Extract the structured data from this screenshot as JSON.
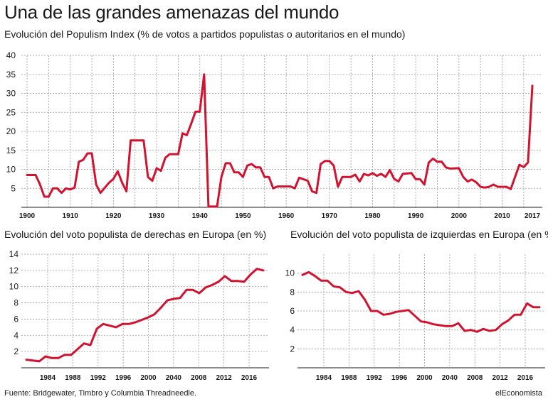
{
  "header": {
    "title": "Una de las grandes amenazas del mundo",
    "subtitle": "Evolución del Populism Index (% de votos a partidos populistas o autoritarios en el mundo)"
  },
  "footer": {
    "source": "Fuente: Bridgewater, Timbro y Columbia Threadneedle.",
    "brand": "elEconomista"
  },
  "colors": {
    "series": "#d2122e",
    "grid": "#9a9a9a",
    "text": "#1a1a1a"
  },
  "chart_data": [
    {
      "type": "line",
      "title": "",
      "ylim": [
        0,
        40
      ],
      "yticks": [
        5,
        10,
        15,
        20,
        25,
        30,
        35,
        40
      ],
      "xlim": [
        1900,
        2017
      ],
      "xticks": [
        "1900",
        "1910",
        "1920",
        "1930",
        "1940",
        "1950",
        "1960",
        "1970",
        "1980",
        "1990",
        "2000",
        "2010",
        "2017"
      ],
      "grid": true,
      "points": [
        [
          1900,
          8.5
        ],
        [
          1902,
          8.5
        ],
        [
          1903,
          6
        ],
        [
          1904,
          2.8
        ],
        [
          1905,
          2.8
        ],
        [
          1906,
          5
        ],
        [
          1907,
          5
        ],
        [
          1908,
          3.8
        ],
        [
          1909,
          5
        ],
        [
          1910,
          4.7
        ],
        [
          1911,
          5.2
        ],
        [
          1912,
          12
        ],
        [
          1913,
          12.5
        ],
        [
          1914,
          14.2
        ],
        [
          1915,
          14.2
        ],
        [
          1916,
          6
        ],
        [
          1917,
          3.8
        ],
        [
          1919,
          6.5
        ],
        [
          1920,
          7.5
        ],
        [
          1921,
          9.5
        ],
        [
          1922,
          6.5
        ],
        [
          1923,
          4.2
        ],
        [
          1924,
          17.6
        ],
        [
          1927,
          17.6
        ],
        [
          1928,
          8
        ],
        [
          1929,
          7
        ],
        [
          1930,
          10.3
        ],
        [
          1931,
          9.6
        ],
        [
          1932,
          13
        ],
        [
          1933,
          14
        ],
        [
          1935,
          14
        ],
        [
          1936,
          19.5
        ],
        [
          1937,
          19
        ],
        [
          1938,
          22
        ],
        [
          1939,
          25.2
        ],
        [
          1940,
          25.2
        ],
        [
          1941,
          35
        ],
        [
          1942,
          0.2
        ],
        [
          1944,
          0.2
        ],
        [
          1945,
          8
        ],
        [
          1946,
          11.6
        ],
        [
          1947,
          11.6
        ],
        [
          1948,
          9.2
        ],
        [
          1949,
          9.2
        ],
        [
          1950,
          8
        ],
        [
          1951,
          11
        ],
        [
          1952,
          11.4
        ],
        [
          1953,
          10.5
        ],
        [
          1954,
          10.5
        ],
        [
          1955,
          8
        ],
        [
          1956,
          8
        ],
        [
          1957,
          5
        ],
        [
          1958,
          5.5
        ],
        [
          1961,
          5.5
        ],
        [
          1962,
          5
        ],
        [
          1963,
          7.8
        ],
        [
          1964,
          7.4
        ],
        [
          1965,
          7
        ],
        [
          1966,
          4.2
        ],
        [
          1967,
          3.8
        ],
        [
          1968,
          11.4
        ],
        [
          1969,
          12.2
        ],
        [
          1970,
          12.2
        ],
        [
          1971,
          11
        ],
        [
          1972,
          5.4
        ],
        [
          1973,
          8
        ],
        [
          1975,
          8
        ],
        [
          1976,
          8.6
        ],
        [
          1977,
          6.8
        ],
        [
          1978,
          8.8
        ],
        [
          1979,
          8.4
        ],
        [
          1980,
          9
        ],
        [
          1981,
          8.3
        ],
        [
          1982,
          8.8
        ],
        [
          1983,
          8
        ],
        [
          1984,
          9.8
        ],
        [
          1985,
          7.5
        ],
        [
          1986,
          6.8
        ],
        [
          1987,
          8.8
        ],
        [
          1989,
          9
        ],
        [
          1990,
          7.4
        ],
        [
          1991,
          7.4
        ],
        [
          1992,
          6
        ],
        [
          1993,
          11.8
        ],
        [
          1994,
          12.8
        ],
        [
          1995,
          12
        ],
        [
          1996,
          12
        ],
        [
          1997,
          10.5
        ],
        [
          1998,
          10.2
        ],
        [
          2000,
          10.3
        ],
        [
          2001,
          8
        ],
        [
          2002,
          6.8
        ],
        [
          2003,
          7.3
        ],
        [
          2004,
          6.6
        ],
        [
          2005,
          5.4
        ],
        [
          2006,
          5.2
        ],
        [
          2007,
          5.4
        ],
        [
          2008,
          6
        ],
        [
          2009,
          5.4
        ],
        [
          2011,
          5.4
        ],
        [
          2012,
          4.8
        ],
        [
          2013,
          8
        ],
        [
          2014,
          11.2
        ],
        [
          2015,
          10.6
        ],
        [
          2016,
          11.8
        ],
        [
          2017,
          32
        ]
      ]
    },
    {
      "type": "line",
      "title": "Evolución del voto populista de derechas en Europa (en %)",
      "ylim": [
        0,
        14
      ],
      "yticks": [
        2,
        4,
        6,
        8,
        10,
        12,
        14
      ],
      "xticks": [
        "1984",
        "1988",
        "1992",
        "1996",
        "2000",
        "2040",
        "2008",
        "2012",
        "2016"
      ],
      "values": [
        1.0,
        0.9,
        0.8,
        1.4,
        1.2,
        1.2,
        1.6,
        1.6,
        2.3,
        3.0,
        2.8,
        4.8,
        5.4,
        5.2,
        5.0,
        5.4,
        5.4,
        5.6,
        5.9,
        6.2,
        6.6,
        7.4,
        8.3,
        8.5,
        8.6,
        9.6,
        9.6,
        9.2,
        9.9,
        10.2,
        10.6,
        11.3,
        10.7,
        10.7,
        10.6,
        11.5,
        12.2,
        12.0
      ],
      "grid": true
    },
    {
      "type": "line",
      "title": "Evolución del voto populista de izquierdas en Europa (en %)",
      "ylim": [
        0,
        12
      ],
      "yticks": [
        2,
        4,
        6,
        8,
        10
      ],
      "xticks": [
        "1984",
        "1988",
        "1992",
        "1996",
        "2000",
        "2040",
        "2008",
        "2012",
        "2016"
      ],
      "values": [
        9.8,
        10.1,
        9.7,
        9.2,
        9.2,
        8.6,
        8.5,
        8.0,
        7.9,
        8.1,
        7.2,
        6.0,
        6.0,
        5.6,
        5.7,
        5.9,
        6.0,
        6.1,
        5.5,
        4.9,
        4.8,
        4.6,
        4.5,
        4.4,
        4.4,
        4.7,
        3.9,
        4.0,
        3.8,
        4.1,
        3.9,
        4.0,
        4.6,
        5.0,
        5.6,
        5.6,
        6.8,
        6.4,
        6.4
      ],
      "grid": true
    }
  ]
}
